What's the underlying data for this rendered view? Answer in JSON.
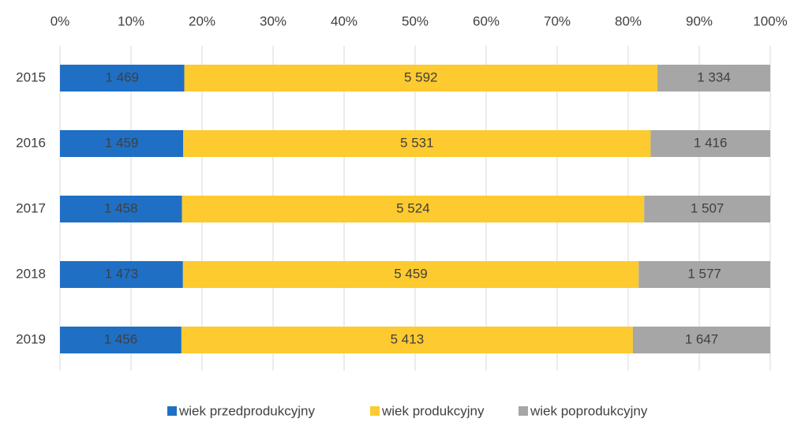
{
  "chart_data": {
    "type": "bar",
    "orientation": "horizontal",
    "stacked": "percent",
    "categories": [
      "2015",
      "2016",
      "2017",
      "2018",
      "2019"
    ],
    "series": [
      {
        "name": "wiek przedprodukcyjny",
        "color": "#1f6fc4",
        "values": [
          1469,
          1459,
          1458,
          1473,
          1456
        ],
        "value_labels": [
          "1 469",
          "1 459",
          "1 458",
          "1 473",
          "1 456"
        ]
      },
      {
        "name": "wiek produkcyjny",
        "color": "#fdca2f",
        "values": [
          5592,
          5531,
          5524,
          5459,
          5413
        ],
        "value_labels": [
          "5 592",
          "5 531",
          "5 524",
          "5 459",
          "5 413"
        ]
      },
      {
        "name": "wiek poprodukcyjny",
        "color": "#a6a6a6",
        "values": [
          1334,
          1416,
          1507,
          1577,
          1647
        ],
        "value_labels": [
          "1 334",
          "1 416",
          "1 507",
          "1 577",
          "1 647"
        ]
      }
    ],
    "xlim": [
      0,
      100
    ],
    "xticks": [
      {
        "value": 0,
        "label": "0%"
      },
      {
        "value": 10,
        "label": "10%"
      },
      {
        "value": 20,
        "label": "20%"
      },
      {
        "value": 30,
        "label": "30%"
      },
      {
        "value": 40,
        "label": "40%"
      },
      {
        "value": 50,
        "label": "50%"
      },
      {
        "value": 60,
        "label": "60%"
      },
      {
        "value": 70,
        "label": "70%"
      },
      {
        "value": 80,
        "label": "80%"
      },
      {
        "value": 90,
        "label": "90%"
      },
      {
        "value": 100,
        "label": "100%"
      }
    ],
    "grid": true,
    "legend": "bottom"
  }
}
